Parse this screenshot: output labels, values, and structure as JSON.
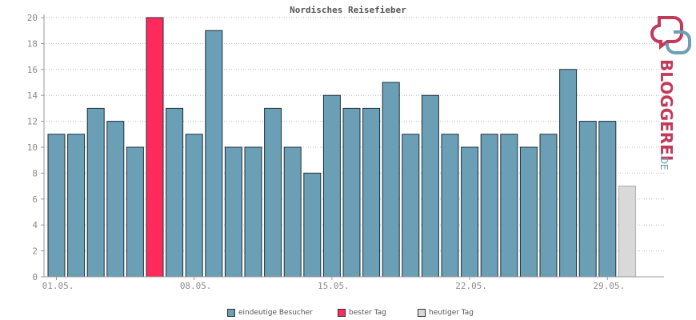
{
  "chart_data": {
    "type": "bar",
    "title": "Nordisches Reisefieber",
    "ylim": [
      0,
      20
    ],
    "yticks": [
      0,
      2,
      4,
      6,
      8,
      10,
      12,
      14,
      16,
      18,
      20
    ],
    "xtick_labels": [
      {
        "index": 0,
        "label": "01.05."
      },
      {
        "index": 7,
        "label": "08.05."
      },
      {
        "index": 14,
        "label": "15.05."
      },
      {
        "index": 21,
        "label": "22.05."
      },
      {
        "index": 28,
        "label": "29.05."
      }
    ],
    "values": [
      11,
      11,
      13,
      12,
      10,
      20,
      13,
      11,
      19,
      10,
      10,
      13,
      10,
      8,
      14,
      13,
      13,
      15,
      11,
      14,
      11,
      10,
      11,
      11,
      10,
      11,
      16,
      12,
      12,
      7
    ],
    "best_day_index": 5,
    "today_index": 29,
    "grid": true,
    "legend_position": "bottom-center",
    "colors": {
      "normal": "#6a9fb5",
      "best": "#ff2a5c",
      "today": "#d9d9d9",
      "bar_border": "#1f2f3a"
    }
  },
  "legend": {
    "unique_visitors": "eindeutige Besucher",
    "best_day": "bester Tag",
    "today": "heutiger Tag"
  },
  "logo": {
    "text": "BLOGGEREI",
    "suffix": ".DE"
  }
}
